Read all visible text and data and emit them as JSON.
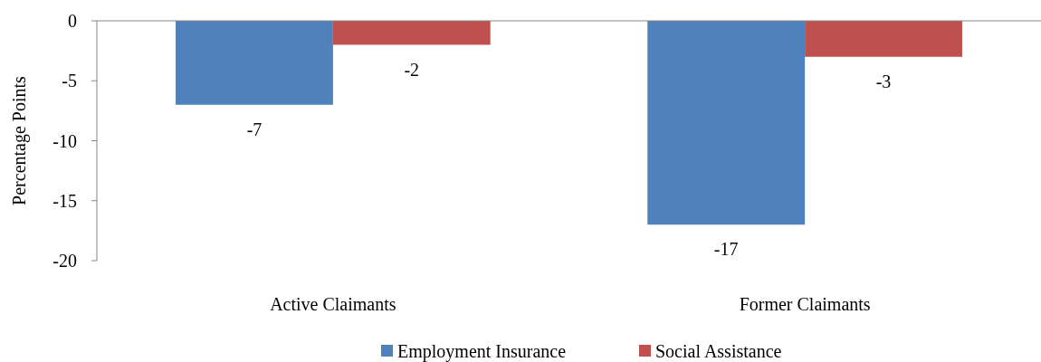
{
  "chart_data": {
    "type": "bar",
    "ylabel": "Percentage Points",
    "categories": [
      "Active Claimants",
      "Former Claimants"
    ],
    "series": [
      {
        "name": "Employment Insurance",
        "color": "#4f81bd",
        "values": [
          -7,
          -17
        ]
      },
      {
        "name": "Social Assistance",
        "color": "#c0504d",
        "values": [
          -2,
          -3
        ]
      }
    ],
    "ylim": [
      -20,
      0
    ],
    "yticks": [
      -20,
      -15,
      -10,
      -5,
      0
    ],
    "data_labels": true,
    "legend": "bottom",
    "grid": false
  }
}
